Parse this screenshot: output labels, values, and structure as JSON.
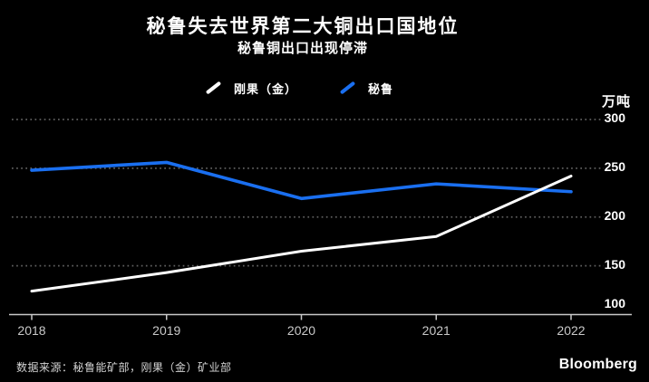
{
  "header": {
    "title": "秘鲁失去世界第二大铜出口国地位",
    "subtitle": "秘鲁铜出口出现停滞"
  },
  "chart_data": {
    "type": "line",
    "title": "秘鲁失去世界第二大铜出口国地位",
    "subtitle": "秘鲁铜出口出现停滞",
    "x": [
      2018,
      2019,
      2020,
      2021,
      2022
    ],
    "series": [
      {
        "id": "congo-drc",
        "name": "刚果（金）",
        "color": "#ffffff",
        "values": [
          124,
          143,
          165,
          180,
          242
        ]
      },
      {
        "id": "peru",
        "name": "秘鲁",
        "color": "#1a6ff0",
        "values": [
          248,
          256,
          219,
          234,
          226
        ]
      }
    ],
    "ylabel_unit": "万吨",
    "ylim": [
      100,
      300
    ],
    "y_ticks": [
      100,
      150,
      200,
      250,
      300
    ],
    "grid": "horizontal-dotted",
    "legend_position": "top-center"
  },
  "footer": {
    "source": "数据来源：秘鲁能矿部，刚果（金）矿业部",
    "brand": "Bloomberg"
  },
  "colors": {
    "background": "#000000",
    "congo_line": "#ffffff",
    "peru_line": "#1a6ff0",
    "grid": "#5f5f5f",
    "axis": "#c8c8c8",
    "tick_label": "#c9c9c9",
    "text": "#ffffff"
  }
}
